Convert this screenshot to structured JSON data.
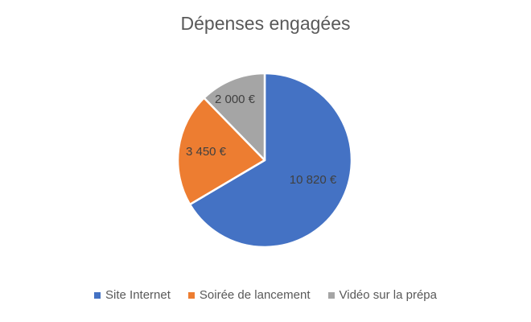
{
  "chart_data": {
    "type": "pie",
    "title": "Dépenses engagées",
    "slices": [
      {
        "name": "Site Internet",
        "value": 10820,
        "label": "10 820 €",
        "color": "#4472C4"
      },
      {
        "name": "Soirée de lancement",
        "value": 3450,
        "label": "3 450 €",
        "color": "#ED7D31"
      },
      {
        "name": "Vidéo sur la prépa",
        "value": 2000,
        "label": "2 000 €",
        "color": "#A5A5A5"
      }
    ],
    "start_angle_deg": 0,
    "direction": "clockwise",
    "legend_position": "bottom"
  }
}
